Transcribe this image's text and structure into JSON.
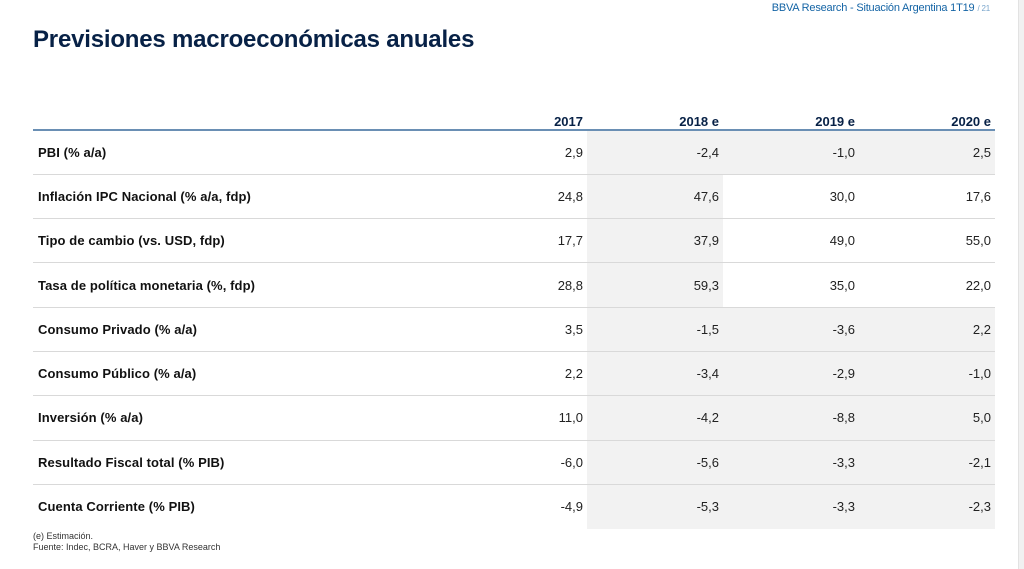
{
  "header": {
    "reference": "BBVA Research - Situación Argentina 1T19",
    "page": "/ 21"
  },
  "title": "Previsiones macroeconómicas anuales",
  "table": {
    "columns": [
      "",
      "2017",
      "2018 e",
      "2019 e",
      "2020 e"
    ],
    "rows": [
      {
        "label": "PBI (% a/a)",
        "values": [
          "2,9",
          "-2,4",
          "-1,0",
          "2,5"
        ]
      },
      {
        "label": "Inflación  IPC Nacional  (% a/a, fdp)",
        "values": [
          "24,8",
          "47,6",
          "30,0",
          "17,6"
        ]
      },
      {
        "label": "Tipo de cambio (vs. USD, fdp)",
        "values": [
          "17,7",
          "37,9",
          "49,0",
          "55,0"
        ]
      },
      {
        "label": "Tasa de política monetaria (%, fdp)",
        "values": [
          "28,8",
          "59,3",
          "35,0",
          "22,0"
        ]
      },
      {
        "label": "Consumo Privado (% a/a)",
        "values": [
          "3,5",
          "-1,5",
          "-3,6",
          "2,2"
        ]
      },
      {
        "label": "Consumo Público (% a/a)",
        "values": [
          "2,2",
          "-3,4",
          "-2,9",
          "-1,0"
        ]
      },
      {
        "label": "Inversión (% a/a)",
        "values": [
          "11,0",
          "-4,2",
          "-8,8",
          "5,0"
        ]
      },
      {
        "label": "Resultado Fiscal total (% PIB)",
        "values": [
          "-6,0",
          "-5,6",
          "-3,3",
          "-2,1"
        ]
      },
      {
        "label": "Cuenta Corriente (% PIB)",
        "values": [
          "-4,9",
          "-5,3",
          "-3,3",
          "-2,3"
        ]
      }
    ]
  },
  "footnote": {
    "line1": "(e) Estimación.",
    "line2": "Fuente: Indec, BCRA, Haver y BBVA Research"
  },
  "colors": {
    "title": "#072146",
    "header_ref": "#1464a5",
    "rule": "#6a8fb4",
    "shade": "#f2f2f2"
  }
}
